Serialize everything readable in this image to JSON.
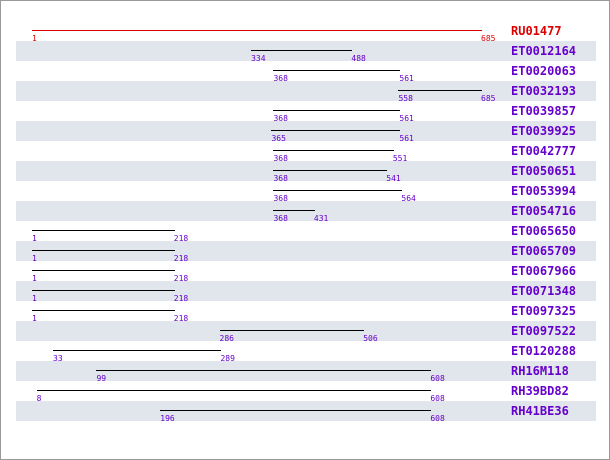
{
  "colors": {
    "reference": "#dd0000",
    "hit": "#6600cc",
    "row_alt": "#e1e5ec",
    "bar": "#000000"
  },
  "scale": {
    "min": 1,
    "max": 685
  },
  "reference": {
    "name": "RU01477",
    "start": 1,
    "end": 685
  },
  "alignments": [
    {
      "name": "ET0012164",
      "start": 334,
      "end": 488
    },
    {
      "name": "ET0020063",
      "start": 368,
      "end": 561
    },
    {
      "name": "ET0032193",
      "start": 558,
      "end": 685
    },
    {
      "name": "ET0039857",
      "start": 368,
      "end": 561
    },
    {
      "name": "ET0039925",
      "start": 365,
      "end": 561
    },
    {
      "name": "ET0042777",
      "start": 368,
      "end": 551
    },
    {
      "name": "ET0050651",
      "start": 368,
      "end": 541
    },
    {
      "name": "ET0053994",
      "start": 368,
      "end": 564
    },
    {
      "name": "ET0054716",
      "start": 368,
      "end": 431
    },
    {
      "name": "ET0065650",
      "start": 1,
      "end": 218
    },
    {
      "name": "ET0065709",
      "start": 1,
      "end": 218
    },
    {
      "name": "ET0067966",
      "start": 1,
      "end": 218
    },
    {
      "name": "ET0071348",
      "start": 1,
      "end": 218
    },
    {
      "name": "ET0097325",
      "start": 1,
      "end": 218
    },
    {
      "name": "ET0097522",
      "start": 286,
      "end": 506
    },
    {
      "name": "ET0120288",
      "start": 33,
      "end": 289
    },
    {
      "name": "RH16M118",
      "start": 99,
      "end": 608
    },
    {
      "name": "RH39BD82",
      "start": 8,
      "end": 608
    },
    {
      "name": "RH41BE36",
      "start": 196,
      "end": 608
    }
  ]
}
